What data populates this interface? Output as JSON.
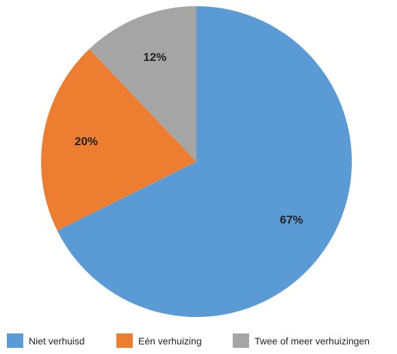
{
  "chart_data": {
    "type": "pie",
    "title": "",
    "start_angle_deg": 0,
    "direction": "clockwise",
    "slices": [
      {
        "name": "Niet verhuisd",
        "value": 67,
        "label": "67%",
        "color": "#5b9bd5"
      },
      {
        "name": "Eén verhuizing",
        "value": 20,
        "label": "20%",
        "color": "#ed7d31"
      },
      {
        "name": "Twee of meer verhuizingen",
        "value": 12,
        "label": "12%",
        "color": "#a5a5a5"
      }
    ],
    "legend_position": "bottom"
  }
}
